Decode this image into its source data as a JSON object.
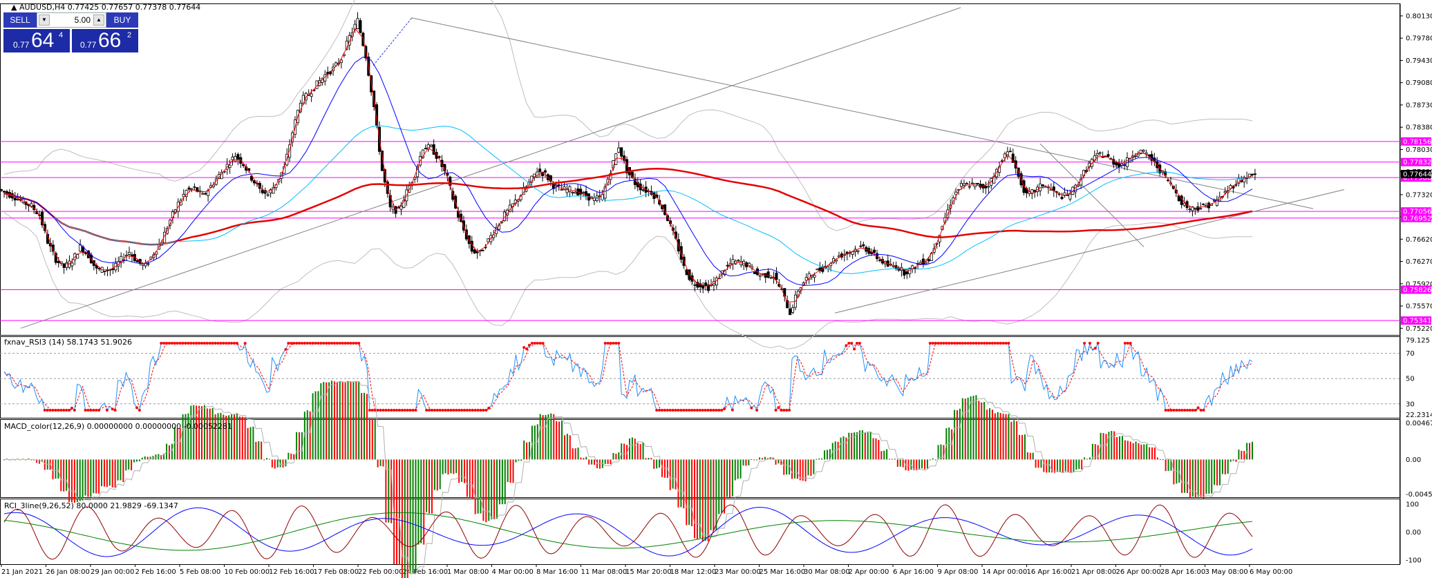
{
  "symbol_info": {
    "symbol": "AUDUSD,H4",
    "ohlc": "0.77425 0.77657 0.77378 0.77644"
  },
  "trade_panel": {
    "sell_label": "SELL",
    "buy_label": "BUY",
    "lots": "5.00",
    "sell_price_prefix": "0.77",
    "sell_price_big": "64",
    "sell_price_sup": "4",
    "buy_price_prefix": "0.77",
    "buy_price_big": "66",
    "buy_price_sup": "2"
  },
  "price_axis": {
    "labels": [
      "0.80130",
      "0.79780",
      "0.79430",
      "0.79080",
      "0.78730",
      "0.78380",
      "0.78030",
      "0.77680",
      "0.77320",
      "0.76970",
      "0.76620",
      "0.76270",
      "0.75920",
      "0.75570",
      "0.75220"
    ],
    "range": [
      0.7518,
      0.8026
    ]
  },
  "horizontal_levels": [
    {
      "label": "0.78156",
      "value": 0.78156
    },
    {
      "label": "0.77832",
      "value": 0.77832
    },
    {
      "label": "0.77588",
      "value": 0.77588
    },
    {
      "label": "0.77056",
      "value": 0.77056
    },
    {
      "label": "0.76952",
      "value": 0.76952
    },
    {
      "label": "0.75826",
      "value": 0.75826
    },
    {
      "label": "0.75341",
      "value": 0.75341
    }
  ],
  "current_price": {
    "label": "0.77644",
    "value": 0.77644
  },
  "time_axis": [
    "21 Jan 2021",
    "26 Jan 08:00",
    "29 Jan 00:00",
    "2 Feb 16:00",
    "5 Feb 08:00",
    "10 Feb 00:00",
    "12 Feb 16:00",
    "17 Feb 08:00",
    "22 Feb 00:00",
    "24 Feb 16:00",
    "1 Mar 08:00",
    "4 Mar 00:00",
    "8 Mar 16:00",
    "11 Mar 08:00",
    "15 Mar 20:00",
    "18 Mar 12:00",
    "23 Mar 00:00",
    "25 Mar 16:00",
    "30 Mar 08:00",
    "2 Apr 00:00",
    "6 Apr 16:00",
    "9 Apr 08:00",
    "14 Apr 00:00",
    "16 Apr 16:00",
    "21 Apr 08:00",
    "26 Apr 00:00",
    "28 Apr 16:00",
    "3 May 08:00",
    "6 May 00:00"
  ],
  "chart_data": {
    "type": "line",
    "price_series": {
      "name": "AUDUSD,H4",
      "close": [
        0.7734,
        0.7728,
        0.772,
        0.7714,
        0.77,
        0.7658,
        0.763,
        0.7618,
        0.7628,
        0.765,
        0.7636,
        0.7614,
        0.7614,
        0.7614,
        0.763,
        0.7642,
        0.7626,
        0.762,
        0.764,
        0.766,
        0.7692,
        0.7718,
        0.7738,
        0.7742,
        0.773,
        0.7745,
        0.7762,
        0.7778,
        0.7794,
        0.778,
        0.7758,
        0.774,
        0.7732,
        0.775,
        0.7774,
        0.783,
        0.788,
        0.789,
        0.7906,
        0.792,
        0.793,
        0.7946,
        0.798,
        0.8006,
        0.795,
        0.787,
        0.777,
        0.771,
        0.7706,
        0.7736,
        0.7764,
        0.7806,
        0.7806,
        0.7786,
        0.7758,
        0.771,
        0.7676,
        0.7644,
        0.764,
        0.766,
        0.768,
        0.77,
        0.7716,
        0.7732,
        0.775,
        0.777,
        0.7764,
        0.7746,
        0.774,
        0.774,
        0.7736,
        0.773,
        0.7724,
        0.773,
        0.777,
        0.7808,
        0.777,
        0.775,
        0.774,
        0.7736,
        0.772,
        0.7694,
        0.766,
        0.7618,
        0.7594,
        0.759,
        0.7586,
        0.7598,
        0.7616,
        0.7626,
        0.7626,
        0.762,
        0.7606,
        0.7606,
        0.7604,
        0.758,
        0.7546,
        0.7582,
        0.76,
        0.761,
        0.7616,
        0.7626,
        0.7636,
        0.764,
        0.7646,
        0.765,
        0.764,
        0.763,
        0.762,
        0.762,
        0.761,
        0.7616,
        0.7626,
        0.763,
        0.766,
        0.7696,
        0.773,
        0.7746,
        0.7748,
        0.7746,
        0.7744,
        0.776,
        0.779,
        0.78,
        0.776,
        0.773,
        0.7738,
        0.7748,
        0.774,
        0.773,
        0.773,
        0.7744,
        0.7766,
        0.7786,
        0.7796,
        0.779,
        0.778,
        0.778,
        0.7796,
        0.78,
        0.7792,
        0.7776,
        0.776,
        0.7742,
        0.772,
        0.771,
        0.7712,
        0.7714,
        0.772,
        0.773,
        0.7744,
        0.7754,
        0.776,
        0.7764
      ]
    },
    "rsi": {
      "name": "fxnav_RSI3 (14) 58.1743 51.9026",
      "levels": [
        70,
        50,
        30
      ],
      "range_labels": [
        "79.125",
        "22.2314"
      ],
      "range": [
        22.2314,
        79.125
      ]
    },
    "macd": {
      "name": "MACD_color(12,26,9) 0.00000000 0.00000000 -0.00052281",
      "range_labels": [
        "0.0046799",
        "0.00",
        "-0.004510"
      ],
      "range": [
        -0.00451,
        0.0046799
      ]
    },
    "rci": {
      "name": "RCI_3line(9,26,52) 80.0000 21.9829 -69.1347",
      "range_labels": [
        "100",
        "0.00",
        "-100"
      ],
      "range": [
        -100,
        100
      ]
    }
  }
}
